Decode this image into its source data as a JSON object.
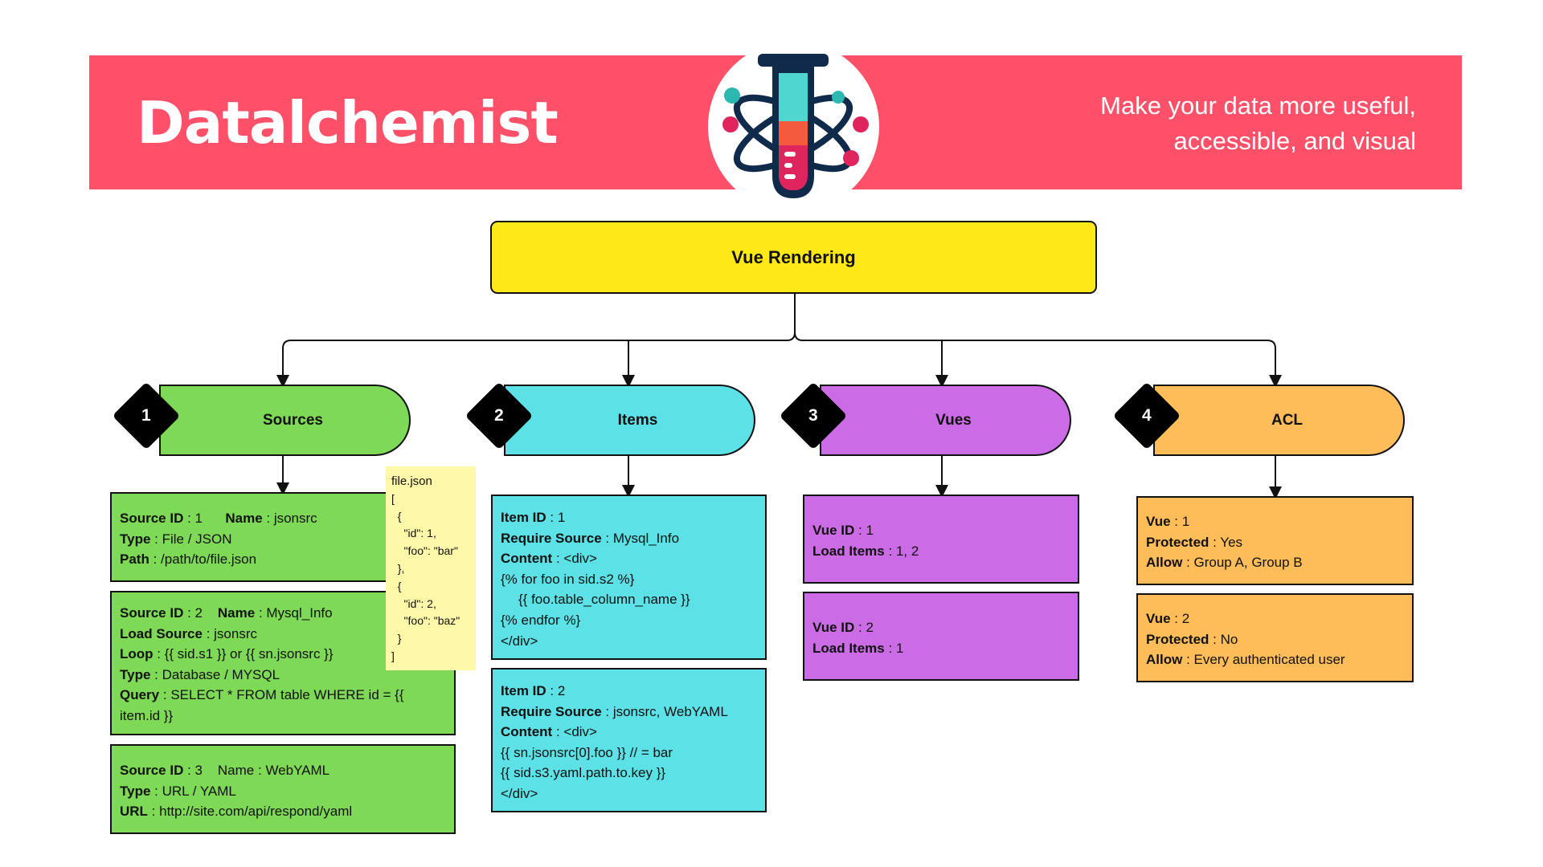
{
  "header": {
    "brand": "Datalchemist",
    "tagline_line1": "Make your data more useful,",
    "tagline_line2": "accessible, and visual",
    "logo_icon": "test-tube-atom-icon",
    "colors": {
      "banner": "#fe5068",
      "root": "#fee818",
      "sources": "#7ed956",
      "items": "#5ce1e6",
      "vues": "#cb6ce6",
      "acl": "#ffbd59",
      "note": "#fef9a8"
    }
  },
  "root": {
    "label": "Vue Rendering"
  },
  "branches": [
    {
      "number": "1",
      "label": "Sources"
    },
    {
      "number": "2",
      "label": "Items"
    },
    {
      "number": "3",
      "label": "Vues"
    },
    {
      "number": "4",
      "label": "ACL"
    }
  ],
  "sources": [
    {
      "id_key": "Source ID",
      "id_value": "1",
      "name_key": "Name",
      "name_value": "jsonsrc",
      "type_key": "Type",
      "type_value": "File / JSON",
      "path_key": "Path",
      "path_value": "/path/to/file.json"
    },
    {
      "id_key": "Source ID",
      "id_value": "2",
      "name_key": "Name",
      "name_value": "Mysql_Info",
      "load_key": "Load Source",
      "load_value": "jsonsrc",
      "loop_key": "Loop",
      "loop_value": "{{ sid.s1 }} or {{ sn.jsonsrc }}",
      "type_key": "Type",
      "type_value": "Database / MYSQL",
      "query_key": "Query",
      "query_value_1": "SELECT * FROM table WHERE id = {{",
      "query_value_2": "item.id }}"
    },
    {
      "id_key": "Source ID",
      "id_value": "3",
      "name_key": "Name",
      "name_value": "WebYAML",
      "type_key": "Type",
      "type_value": "URL / YAML",
      "url_key": "URL",
      "url_value": "http://site.com/api/respond/yaml"
    }
  ],
  "note": {
    "title": "file.json",
    "lines": [
      "[",
      "  {",
      "    \"id\": 1,",
      "    \"foo\": \"bar\"",
      "  },",
      "  {",
      "    \"id\": 2,",
      "    \"foo\": \"baz\"",
      "  }",
      "]"
    ]
  },
  "items": [
    {
      "id_key": "Item ID",
      "id_value": "1",
      "req_key": "Require Source",
      "req_value": "Mysql_Info",
      "content_key": "Content",
      "content_value": "<div>",
      "code": [
        "{% for foo in sid.s2 %}",
        "{{ foo.table_column_name }}",
        "{% endfor %}",
        "</div>"
      ]
    },
    {
      "id_key": "Item ID",
      "id_value": "2",
      "req_key": "Require Source",
      "req_value": "jsonsrc, WebYAML",
      "content_key": "Content",
      "content_value": "<div>",
      "code": [
        "{{ sn.jsonsrc[0].foo }} // = bar",
        "{{ sid.s3.yaml.path.to.key }}",
        "</div>"
      ]
    }
  ],
  "vues": [
    {
      "id_key": "Vue ID",
      "id_value": "1",
      "load_key": "Load Items",
      "load_value": "1, 2"
    },
    {
      "id_key": "Vue ID",
      "id_value": "2",
      "load_key": "Load Items",
      "load_value": "1"
    }
  ],
  "acl": [
    {
      "vue_key": "Vue",
      "vue_value": "1",
      "prot_key": "Protected",
      "prot_value": "Yes",
      "allow_key": "Allow",
      "allow_value": "Group A, Group B"
    },
    {
      "vue_key": "Vue",
      "vue_value": "2",
      "prot_key": "Protected",
      "prot_value": "No",
      "allow_key": "Allow",
      "allow_value": "Every authenticated user"
    }
  ]
}
